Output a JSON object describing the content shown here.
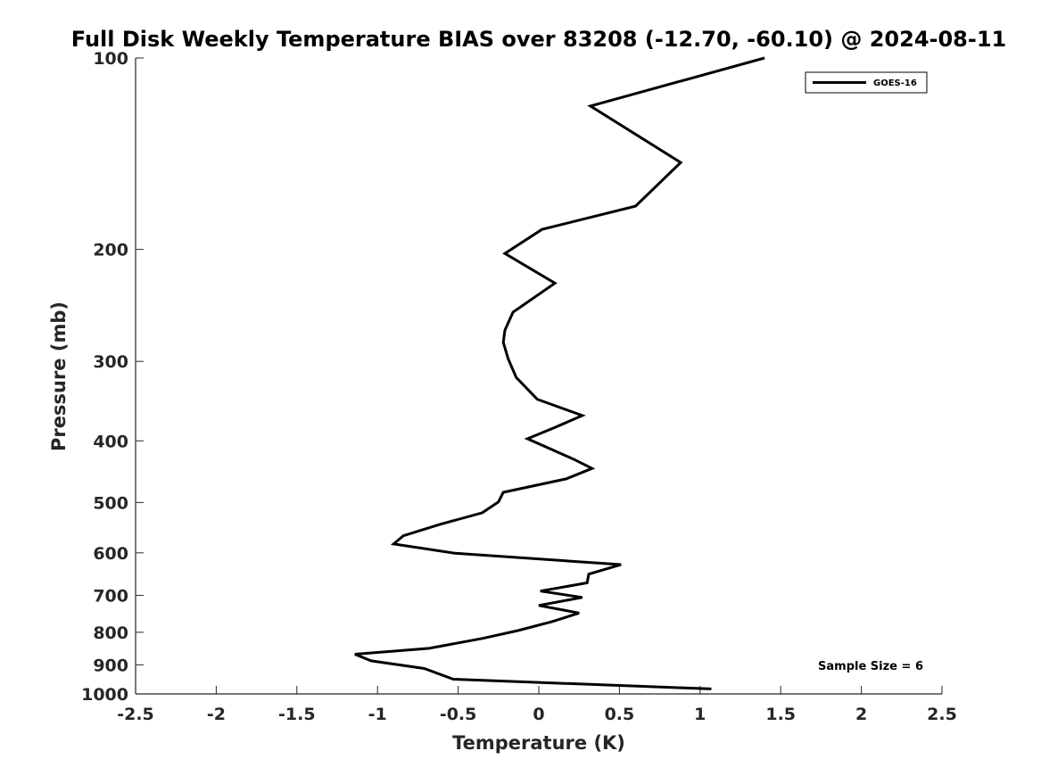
{
  "chart_data": {
    "type": "line",
    "title": "Full Disk Weekly Temperature BIAS over 83208 (-12.70, -60.10) @ 2024-08-11",
    "xlabel": "Temperature (K)",
    "ylabel": "Pressure (mb)",
    "xlim": [
      -2.5,
      2.5
    ],
    "ylim": [
      100,
      1000
    ],
    "y_scale": "log",
    "y_reversed": true,
    "grid": false,
    "legend_position": "top-right",
    "x_ticks": [
      -2.5,
      -2,
      -1.5,
      -1,
      -0.5,
      0,
      0.5,
      1,
      1.5,
      2,
      2.5
    ],
    "x_tick_labels": [
      "-2.5",
      "-2",
      "-1.5",
      "-1",
      "-0.5",
      "0",
      "0.5",
      "1",
      "1.5",
      "2",
      "2.5"
    ],
    "y_ticks": [
      100,
      200,
      300,
      400,
      500,
      600,
      700,
      800,
      900,
      1000
    ],
    "y_tick_labels": [
      "100",
      "200",
      "300",
      "400",
      "500",
      "600",
      "700",
      "800",
      "900",
      "1000"
    ],
    "annotation": "Sample Size = 6",
    "series": [
      {
        "name": "GOES-16",
        "color": "#000000",
        "x": [
          1.4,
          0.32,
          0.88,
          0.6,
          0.02,
          -0.21,
          0.1,
          -0.16,
          -0.21,
          -0.22,
          -0.19,
          -0.14,
          -0.01,
          0.27,
          0.09,
          -0.07,
          0.22,
          0.33,
          0.17,
          -0.22,
          -0.25,
          -0.35,
          -0.62,
          -0.84,
          -0.9,
          -0.52,
          0.51,
          0.31,
          0.3,
          0.01,
          0.27,
          0.0,
          0.25,
          0.08,
          -0.13,
          -0.35,
          -0.68,
          -1.14,
          -1.04,
          -0.71,
          -0.53,
          1.07
        ],
        "y": [
          100,
          119,
          146,
          171,
          186,
          203,
          226,
          251,
          268,
          280,
          297,
          318,
          344,
          365,
          382,
          397,
          428,
          442,
          459,
          482,
          499,
          519,
          542,
          564,
          581,
          601,
          626,
          648,
          669,
          689,
          705,
          726,
          746,
          770,
          795,
          818,
          848,
          866,
          887,
          912,
          948,
          982
        ]
      }
    ]
  }
}
